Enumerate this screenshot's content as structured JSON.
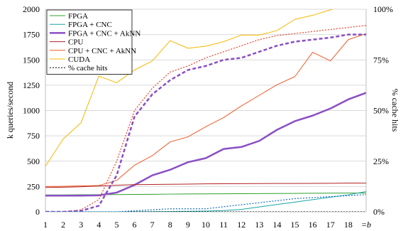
{
  "chart_data": {
    "type": "line",
    "x": [
      1,
      2,
      3,
      4,
      5,
      6,
      7,
      8,
      9,
      10,
      11,
      12,
      13,
      14,
      15,
      16,
      17,
      18,
      19
    ],
    "x_tick_labels": [
      "1",
      "2",
      "3",
      "4",
      "5",
      "6",
      "7",
      "8",
      "9",
      "10",
      "11",
      "12",
      "13",
      "14",
      "15",
      "16",
      "17",
      "18",
      "=b"
    ],
    "ylabel": "k queries/second",
    "y2label": "% cache hits",
    "ylim": [
      0,
      2000
    ],
    "y_ticks": [
      0,
      250,
      500,
      750,
      1000,
      1250,
      1500,
      1750,
      2000
    ],
    "y_tick_labels": [
      "0",
      "250",
      "500",
      "750",
      "1000",
      "1250",
      "1500",
      "1750",
      "2000"
    ],
    "y2lim": [
      0,
      100
    ],
    "y2_ticks": [
      0,
      25,
      50,
      75,
      100
    ],
    "y2_tick_labels": [
      "0%",
      "25%",
      "50%",
      "75%",
      "100%"
    ],
    "grid": "horizontal",
    "legend_position": "top-left",
    "series": [
      {
        "name": "FPGA",
        "axis": "left",
        "style": "solid",
        "color": "#2ca02c",
        "width": 1,
        "values": [
          167,
          167,
          168,
          169,
          170,
          172,
          173,
          175,
          176,
          177,
          178,
          179,
          180,
          181,
          182,
          183,
          184,
          185,
          185
        ]
      },
      {
        "name": "FPGA + CNC",
        "axis": "left",
        "style": "solid",
        "color": "#1aa6a6",
        "width": 1,
        "values": [
          0,
          0,
          0,
          0,
          0,
          1,
          2,
          3,
          5,
          7,
          12,
          24,
          48,
          72,
          96,
          120,
          144,
          168,
          200
        ]
      },
      {
        "name": "FPGA + CNC + AkNN",
        "axis": "left",
        "style": "solid",
        "color": "#8a4fc4",
        "width": 2.5,
        "values": [
          160,
          160,
          160,
          162,
          190,
          265,
          360,
          415,
          490,
          530,
          620,
          640,
          700,
          810,
          895,
          950,
          1020,
          1110,
          1175
        ]
      },
      {
        "name": "CPU",
        "axis": "left",
        "style": "solid",
        "color": "#b22222",
        "width": 1,
        "values": [
          240,
          243,
          247,
          255,
          262,
          268,
          270,
          272,
          274,
          276,
          277,
          278,
          279,
          280,
          280,
          281,
          282,
          283,
          283
        ]
      },
      {
        "name": "CPU + CNC + AkNN",
        "axis": "left",
        "style": "solid",
        "color": "#f05a28",
        "width": 1,
        "values": [
          250,
          252,
          256,
          260,
          310,
          460,
          555,
          690,
          740,
          840,
          930,
          1045,
          1150,
          1255,
          1335,
          1575,
          1490,
          1700,
          1760
        ]
      },
      {
        "name": "CUDA",
        "axis": "left",
        "style": "solid",
        "color": "#f5b800",
        "width": 1,
        "values": [
          450,
          720,
          880,
          1340,
          1275,
          1400,
          1490,
          1690,
          1615,
          1635,
          1680,
          1745,
          1745,
          1790,
          1900,
          1940,
          1995,
          2040,
          2080
        ]
      },
      {
        "name": "% cache hits",
        "axis": "right",
        "style": "dotted",
        "color": "#000000",
        "width": 1,
        "values": [
          0,
          0,
          0,
          0,
          0,
          0,
          0,
          0,
          0,
          0,
          0,
          0,
          0,
          0,
          0,
          0,
          0,
          0,
          0
        ]
      },
      {
        "name": "",
        "axis": "right",
        "style": "dotted",
        "color": "#e8432a",
        "width": 1.2,
        "values": [
          0,
          0,
          1,
          6,
          25,
          50,
          61,
          69,
          72,
          76,
          79,
          82,
          85,
          87,
          88,
          89,
          90,
          91,
          92
        ]
      },
      {
        "name": "",
        "axis": "right",
        "style": "dashed",
        "color": "#8a4fc4",
        "width": 2.5,
        "values": [
          0,
          0,
          0.5,
          3,
          18,
          47,
          58,
          65,
          70,
          72,
          75,
          76,
          79,
          82,
          84,
          85,
          86,
          87.5,
          87.5
        ]
      },
      {
        "name": "",
        "axis": "right",
        "style": "dotted",
        "color": "#1a6fc4",
        "width": 1.2,
        "values": [
          0,
          0,
          0,
          0,
          0,
          0.5,
          1,
          1.5,
          1.5,
          1.5,
          2.5,
          3.5,
          4.5,
          5.5,
          6.5,
          7,
          7.5,
          8,
          8.5
        ]
      }
    ]
  }
}
